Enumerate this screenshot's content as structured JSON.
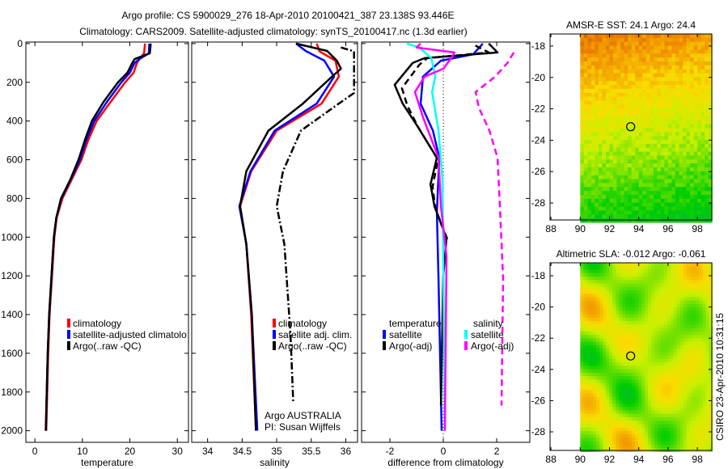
{
  "title_line1": "Argo profile: CS 5900029_276 18-Apr-2010 20100421_387 23.138S 93.446E",
  "title_line2": "Climatology: CARS2009. Satellite-adjusted climatology: synTS_20100417.nc (1.3d earlier)",
  "credit_line1": "Argo AUSTRALIA",
  "credit_line2": "PI: Susan Wijffels",
  "timestamp": "CSIRO 23-Apr-2010 10:31:15",
  "colors": {
    "red": "#ff0000",
    "blue": "#0000ff",
    "black": "#000000",
    "cyan": "#00ffff",
    "magenta": "#ff00ff"
  },
  "chart_data": [
    {
      "type": "line",
      "id": "temperature",
      "xlabel": "temperature",
      "ylabel": "",
      "xlim": [
        -1.9,
        32.35
      ],
      "ylim": [
        2060,
        -8
      ],
      "y_reversed": true,
      "xticks": [
        "0",
        "10",
        "20",
        "30"
      ],
      "xtick_values": [
        0,
        10,
        20,
        30
      ],
      "yticks": [
        "0",
        "200",
        "400",
        "600",
        "800",
        "1000",
        "1200",
        "1400",
        "1600",
        "1800",
        "2000"
      ],
      "ytick_values": [
        0,
        200,
        400,
        600,
        800,
        1000,
        1200,
        1400,
        1600,
        1800,
        2000
      ],
      "legend": {
        "placement": "middle-left",
        "entries": [
          "climatology",
          "satellite-adjusted climatolo",
          "Argo(..raw -QC)"
        ]
      },
      "series": [
        {
          "name": "climatology",
          "color": "red",
          "style": "solid",
          "depth": [
            0,
            50,
            80,
            100,
            150,
            200,
            300,
            400,
            500,
            600,
            700,
            800,
            900,
            1000,
            1200,
            1400,
            1600,
            1800,
            2000
          ],
          "values": [
            23.2,
            23,
            22,
            21.5,
            20.8,
            19,
            16,
            13,
            11.2,
            9.8,
            7.8,
            5.8,
            4.6,
            4.1,
            3.6,
            3.1,
            2.8,
            2.6,
            2.4
          ]
        },
        {
          "name": "satellite-adjusted climatology",
          "color": "blue",
          "style": "solid",
          "depth": [
            0,
            50,
            80,
            100,
            150,
            200,
            300,
            400,
            500,
            600,
            700,
            800,
            900,
            1000,
            1200,
            1400,
            1600,
            1800,
            2000
          ],
          "values": [
            24.1,
            24,
            22,
            21,
            20,
            18.2,
            15.2,
            12.5,
            10.8,
            9.5,
            7.6,
            5.6,
            4.5,
            4,
            3.5,
            3,
            2.7,
            2.5,
            2.3
          ]
        },
        {
          "name": "Argo(..raw -QC)",
          "color": "black",
          "style": "solid",
          "depth": [
            0,
            50,
            80,
            100,
            150,
            200,
            300,
            400,
            500,
            600,
            700,
            800,
            900,
            1000,
            1200,
            1400,
            1600,
            1800,
            2000
          ],
          "values": [
            24.4,
            24.2,
            21,
            20.5,
            19.5,
            17.5,
            14.5,
            12,
            10.5,
            9.2,
            7.5,
            5.5,
            4.5,
            4,
            3.5,
            3,
            2.7,
            2.5,
            2.3
          ]
        }
      ]
    },
    {
      "type": "line",
      "id": "salinity",
      "xlabel": "salinity",
      "ylabel": "",
      "xlim": [
        33.77,
        36.17
      ],
      "ylim": [
        2060,
        -8
      ],
      "y_reversed": true,
      "xticks": [
        "34",
        "34.5",
        "35",
        "35.5",
        "36"
      ],
      "xtick_values": [
        34,
        34.5,
        35,
        35.5,
        36
      ],
      "legend": {
        "placement": "middle-right",
        "entries": [
          "climatology",
          "satellite adj. clim.",
          "Argo(..raw -QC)"
        ]
      },
      "series": [
        {
          "name": "climatology",
          "color": "red",
          "style": "solid",
          "depth": [
            0,
            40,
            88,
            171,
            310,
            450,
            660,
            840,
            1035,
            1400,
            2000
          ],
          "values": [
            35.58,
            35.62,
            35.85,
            35.9,
            35.65,
            35.0,
            34.63,
            34.47,
            34.56,
            34.63,
            34.7
          ]
        },
        {
          "name": "satellite adj. clim.",
          "color": "blue",
          "style": "solid",
          "depth": [
            0,
            38,
            88,
            171,
            310,
            450,
            660,
            840,
            1035,
            1400,
            2000
          ],
          "values": [
            35.28,
            35.42,
            35.69,
            35.83,
            35.58,
            34.97,
            34.62,
            34.46,
            34.56,
            34.64,
            34.72
          ]
        },
        {
          "name": "Argo(..raw -QC)",
          "color": "black",
          "style": "solid",
          "depth": [
            0,
            38,
            88,
            130,
            171,
            310,
            450,
            660,
            840,
            1035,
            1400,
            2000
          ],
          "values": [
            35.28,
            35.73,
            35.87,
            35.93,
            35.8,
            35.38,
            34.88,
            34.56,
            34.47,
            34.56,
            34.64,
            34.7
          ]
        },
        {
          "name": "Argo raw",
          "color": "black",
          "style": "dashdot",
          "depth": [
            20,
            40,
            255,
            310,
            450,
            660,
            840,
            1035,
            1500,
            1860
          ],
          "values": [
            35.93,
            36.12,
            36.12,
            35.9,
            35.35,
            35.09,
            35.0,
            35.11,
            35.2,
            35.24
          ]
        }
      ]
    },
    {
      "type": "line",
      "id": "difference",
      "xlabel": "difference from climatology",
      "ylabel": "",
      "xlim": [
        -3.06,
        3.24
      ],
      "ylim": [
        2060,
        -8
      ],
      "y_reversed": true,
      "xticks": [
        "-2",
        "0",
        "2"
      ],
      "xtick_values": [
        -2,
        0,
        2
      ],
      "legend": {
        "placement": "middle",
        "temperature_heading": "temperature",
        "salinity_heading": "salinity",
        "entries": [
          "satellite",
          "Argo(-adj)",
          "satellite",
          "Argo(-adj)"
        ]
      },
      "series": [
        {
          "name": "temperature satellite",
          "color": "blue",
          "style": "solid",
          "depth": [
            0,
            55,
            88,
            171,
            310,
            450,
            590,
            870,
            1215,
            2000
          ],
          "values": [
            1.48,
            1.12,
            -0.09,
            -0.76,
            -0.85,
            -0.39,
            -0.15,
            -0.24,
            -0.18,
            -0.06
          ]
        },
        {
          "name": "temperature Argo(-adj)",
          "color": "black",
          "style": "solid",
          "depth": [
            0,
            46,
            75,
            100,
            213,
            310,
            420,
            590,
            727,
            840,
            1006,
            1200,
            1870
          ],
          "values": [
            1.7,
            2.03,
            -0.7,
            -1.15,
            -1.82,
            -1.52,
            -1.0,
            -0.24,
            -0.48,
            -0.33,
            0.12,
            0.0,
            -0.09
          ]
        },
        {
          "name": "temperature Argo raw",
          "color": "black",
          "style": "dashed",
          "depth": [
            10,
            46,
            75,
            110,
            230,
            320,
            430,
            600,
            740,
            850,
            1010
          ],
          "values": [
            1.2,
            1.7,
            -0.6,
            -0.9,
            -1.55,
            -1.35,
            -0.95,
            -0.2,
            -0.4,
            -0.3,
            0.15
          ]
        },
        {
          "name": "salinity satellite",
          "color": "cyan",
          "style": "solid",
          "depth": [
            0,
            20,
            75,
            171,
            250,
            450,
            700,
            2000
          ],
          "values": [
            -1.36,
            -0.9,
            -0.45,
            -0.3,
            -0.42,
            -0.18,
            -0.03,
            0.06
          ]
        },
        {
          "name": "salinity Argo(-adj)",
          "color": "magenta",
          "style": "solid",
          "depth": [
            0,
            20,
            46,
            75,
            130,
            171,
            250,
            380,
            590,
            840,
            1100,
            2000
          ],
          "values": [
            -0.85,
            -1.0,
            0.42,
            0.3,
            0,
            -0.7,
            -1.06,
            -0.76,
            -0.18,
            -0.09,
            0.12,
            0.06
          ]
        },
        {
          "name": "salinity Argo raw",
          "color": "magenta",
          "style": "dashed",
          "depth": [
            46,
            100,
            171,
            250,
            330,
            450,
            590,
            840,
            1215,
            1870
          ],
          "values": [
            2.64,
            2.4,
            1.94,
            1.21,
            1.33,
            1.73,
            2.03,
            2.12,
            2.24,
            2.18
          ]
        }
      ]
    },
    {
      "type": "heatmap",
      "id": "sst-map",
      "title": "AMSR-E SST: 24.1 Argo: 24.4",
      "xlim": [
        87.94,
        98.99
      ],
      "ylim": [
        -29.08,
        -17.23
      ],
      "xticks": [
        "88",
        "90",
        "92",
        "94",
        "96",
        "98"
      ],
      "xtick_values": [
        88,
        90,
        92,
        94,
        96,
        98
      ],
      "yticks": [
        "-18",
        "-20",
        "-22",
        "-24",
        "-26",
        "-28"
      ],
      "ytick_values": [
        -18,
        -20,
        -22,
        -24,
        -26,
        -28
      ],
      "data_extent_lon": [
        90,
        98.9
      ],
      "profile_location": {
        "lon": 93.446,
        "lat": -23.138
      }
    },
    {
      "type": "heatmap",
      "id": "sla-map",
      "title": "Altimetric SLA: -0.012 Argo: -0.061",
      "xlim": [
        87.94,
        98.99
      ],
      "ylim": [
        -29.19,
        -17.17
      ],
      "xticks": [
        "88",
        "90",
        "92",
        "94",
        "96",
        "98"
      ],
      "xtick_values": [
        88,
        90,
        92,
        94,
        96,
        98
      ],
      "yticks": [
        "-18",
        "-20",
        "-22",
        "-24",
        "-26",
        "-28"
      ],
      "ytick_values": [
        -18,
        -20,
        -22,
        -24,
        -26,
        -28
      ],
      "data_extent_lon": [
        90,
        98.9
      ],
      "profile_location": {
        "lon": 93.446,
        "lat": -23.138
      }
    }
  ]
}
